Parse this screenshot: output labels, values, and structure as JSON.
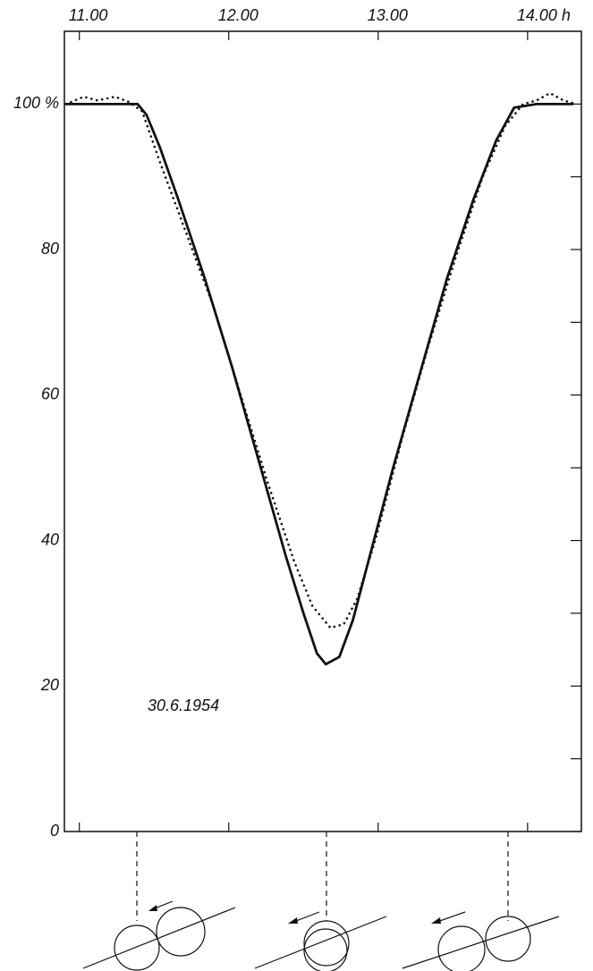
{
  "chart_data": {
    "type": "line",
    "annotation": "30.6.1954",
    "xlim": [
      10.9,
      14.36
    ],
    "xticks": [
      {
        "value": 11,
        "label": "11.00"
      },
      {
        "value": 12,
        "label": "12.00"
      },
      {
        "value": 13,
        "label": "13.00"
      },
      {
        "value": 14,
        "label": "14.00 h"
      }
    ],
    "ylim": [
      0,
      110
    ],
    "yticks": [
      0,
      20,
      40,
      60,
      80,
      {
        "value": 100,
        "label": "100 %"
      }
    ],
    "yminor_ticks": [
      10,
      30,
      50,
      70,
      90
    ],
    "series": [
      {
        "color": "#111111",
        "style": "solid",
        "x": [
          10.91,
          11.39,
          11.45,
          11.54,
          11.66,
          11.84,
          12.02,
          12.2,
          12.38,
          12.5,
          12.59,
          12.65,
          12.74,
          12.83,
          12.92,
          13.1,
          13.28,
          13.46,
          13.64,
          13.79,
          13.91,
          14.06,
          14.3
        ],
        "values": [
          100,
          100,
          98.5,
          94,
          87,
          76,
          64,
          51,
          38,
          30,
          24.5,
          23,
          24,
          29,
          36,
          50,
          63,
          76,
          87,
          95,
          99.5,
          100,
          100
        ]
      },
      {
        "color": "#111111",
        "style": "dotted",
        "x": [
          10.91,
          11.03,
          11.12,
          11.24,
          11.33,
          11.42,
          11.54,
          11.72,
          11.9,
          12.08,
          12.26,
          12.44,
          12.56,
          12.68,
          12.77,
          12.86,
          12.98,
          13.16,
          13.34,
          13.52,
          13.7,
          13.85,
          13.97,
          14.06,
          14.15,
          14.24,
          14.33
        ],
        "values": [
          100,
          101,
          100.5,
          101,
          100.3,
          99,
          92,
          82,
          72,
          60,
          48,
          37,
          31,
          28,
          28.5,
          32,
          40,
          54,
          67,
          79,
          90,
          97,
          100,
          100.5,
          101.5,
          100.5,
          100
        ]
      }
    ]
  }
}
